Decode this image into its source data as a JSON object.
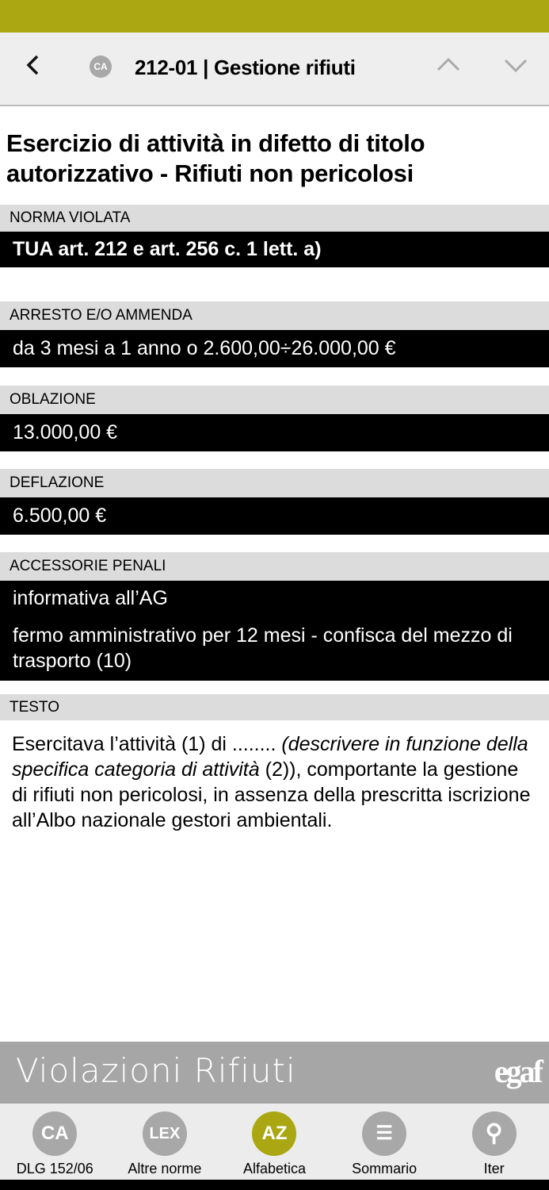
{
  "header": {
    "back_icon": "chevron-left-icon",
    "badge": "CA",
    "title": "212-01 | Gestione rifiuti",
    "prev_icon": "chevron-up-icon",
    "next_icon": "chevron-down-icon"
  },
  "main": {
    "title": "Esercizio di attività in difetto di titolo autorizzativo - Rifiuti non pericolosi",
    "sections": [
      {
        "label": "NORMA VIOLATA",
        "values": [
          "TUA art. 212 e art. 256 c. 1 lett. a)"
        ]
      },
      {
        "label": "ARRESTO E/O AMMENDA",
        "values": [
          "da 3 mesi a 1 anno o 2.600,00÷26.000,00 €"
        ]
      },
      {
        "label": "OBLAZIONE",
        "values": [
          "13.000,00 €"
        ]
      },
      {
        "label": "DEFLAZIONE",
        "values": [
          "6.500,00 €"
        ]
      },
      {
        "label": "ACCESSORIE PENALI",
        "values": [
          "informativa all’AG",
          "fermo amministrativo per 12 mesi - confisca del mezzo di trasporto (10)"
        ]
      }
    ],
    "testo": {
      "label": "TESTO",
      "part1": "Esercitava l’attività (1) di ........ ",
      "italic1": "(descrivere in funzione della specifica categoria di attività",
      "part2": " (2)), comportante la gestione di rifiuti non pericolosi, in assenza della prescritta iscrizione all’Albo nazionale gestori ambientali."
    }
  },
  "banner": {
    "title": "Violazioni Rifiuti",
    "logo": "egaf"
  },
  "nav": {
    "items": [
      {
        "icon": "CA",
        "label": "DLG 152/06",
        "color": "#a8a8a8"
      },
      {
        "icon": "LEX",
        "label": "Altre norme",
        "color": "#a8a8a8"
      },
      {
        "icon": "AZ",
        "label": "Alfabetica",
        "color": "#aba713"
      },
      {
        "icon": "☰",
        "label": "Sommario",
        "color": "#a8a8a8"
      },
      {
        "icon": "⚲",
        "label": "Iter",
        "color": "#a8a8a8"
      }
    ]
  }
}
